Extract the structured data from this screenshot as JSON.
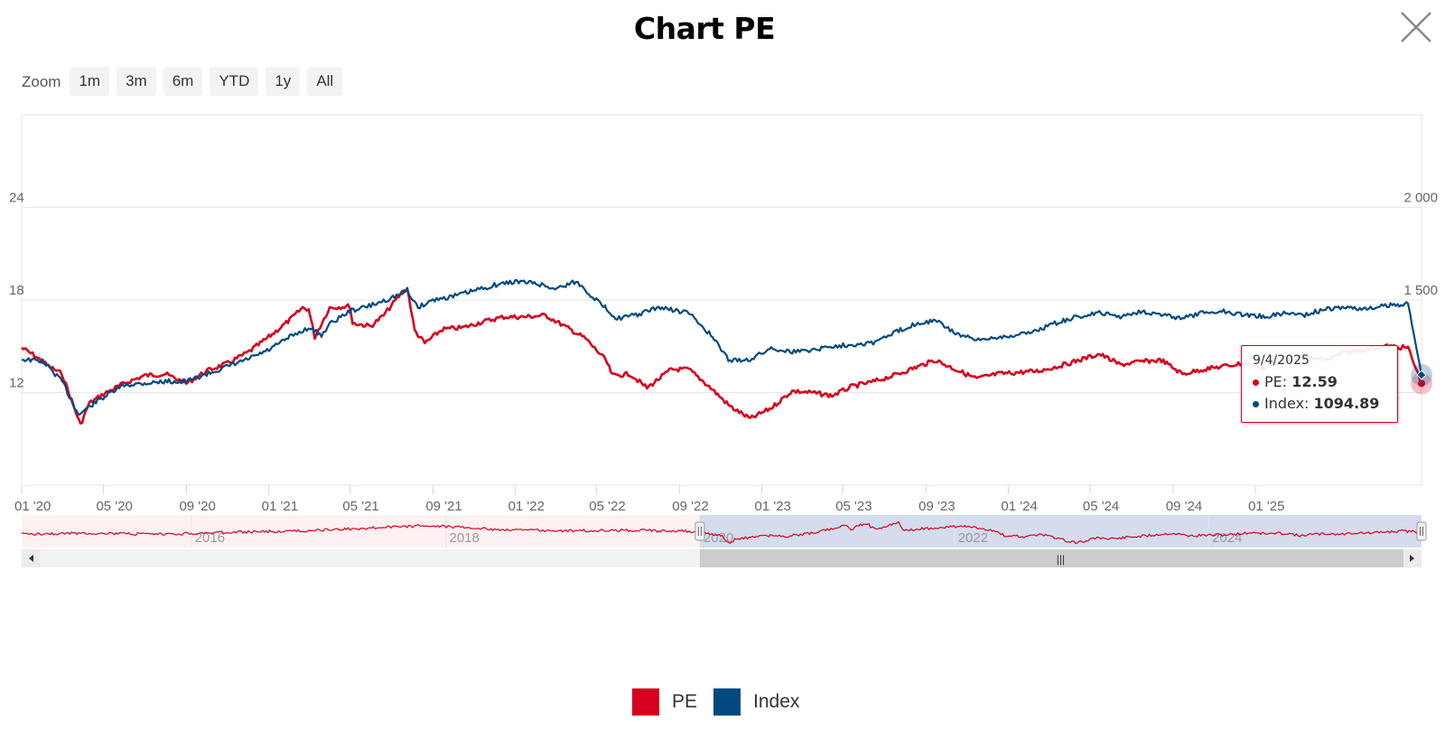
{
  "title": "Chart PE",
  "close_icon": "close-icon",
  "zoom": {
    "label": "Zoom",
    "buttons": [
      "1m",
      "3m",
      "6m",
      "YTD",
      "1y",
      "All"
    ]
  },
  "colors": {
    "pe": "#d7001e",
    "index": "#004a80"
  },
  "chart_data": {
    "type": "line",
    "title": "Chart PE",
    "x_range": [
      "2020-01-01",
      "2025-09-04"
    ],
    "x_ticks": [
      "01 '20",
      "05 '20",
      "09 '20",
      "01 '21",
      "05 '21",
      "09 '21",
      "01 '22",
      "05 '22",
      "09 '22",
      "01 '23",
      "05 '23",
      "09 '23",
      "01 '24",
      "05 '24",
      "09 '24",
      "01 '25"
    ],
    "y_left": {
      "ticks": [
        12,
        18,
        24
      ],
      "range": [
        6,
        30
      ]
    },
    "y_right": {
      "ticks": [
        "1 500",
        "2 000"
      ],
      "range": [
        500,
        2500
      ]
    },
    "grid": true,
    "legend_position": "bottom-center",
    "series": [
      {
        "name": "PE",
        "axis": "left",
        "points": [
          [
            "2020-01-01",
            14.9
          ],
          [
            "2020-01-20",
            14.4
          ],
          [
            "2020-02-10",
            13.7
          ],
          [
            "2020-03-01",
            13.2
          ],
          [
            "2020-03-15",
            11.5
          ],
          [
            "2020-03-28",
            9.9
          ],
          [
            "2020-04-10",
            11.3
          ],
          [
            "2020-05-01",
            11.9
          ],
          [
            "2020-06-01",
            12.6
          ],
          [
            "2020-07-01",
            13.1
          ],
          [
            "2020-08-01",
            13.2
          ],
          [
            "2020-09-01",
            12.6
          ],
          [
            "2020-10-01",
            13.4
          ],
          [
            "2020-11-01",
            13.9
          ],
          [
            "2020-12-01",
            14.6
          ],
          [
            "2021-01-01",
            15.6
          ],
          [
            "2021-02-01",
            16.7
          ],
          [
            "2021-02-20",
            17.5
          ],
          [
            "2021-03-01",
            17.4
          ],
          [
            "2021-03-10",
            15.6
          ],
          [
            "2021-04-01",
            17.5
          ],
          [
            "2021-05-01",
            17.6
          ],
          [
            "2021-05-05",
            16.5
          ],
          [
            "2021-06-01",
            16.3
          ],
          [
            "2021-06-20",
            17.0
          ],
          [
            "2021-07-10",
            18.1
          ],
          [
            "2021-07-25",
            18.8
          ],
          [
            "2021-08-05",
            16.0
          ],
          [
            "2021-08-20",
            15.2
          ],
          [
            "2021-09-15",
            16.1
          ],
          [
            "2021-10-15",
            16.2
          ],
          [
            "2021-11-15",
            16.6
          ],
          [
            "2021-12-15",
            16.9
          ],
          [
            "2022-01-15",
            16.9
          ],
          [
            "2022-02-15",
            17.0
          ],
          [
            "2022-03-15",
            16.3
          ],
          [
            "2022-04-15",
            15.5
          ],
          [
            "2022-05-15",
            14.1
          ],
          [
            "2022-05-25",
            13.1
          ],
          [
            "2022-06-20",
            13.2
          ],
          [
            "2022-07-15",
            12.3
          ],
          [
            "2022-08-20",
            13.5
          ],
          [
            "2022-09-15",
            13.5
          ],
          [
            "2022-10-15",
            12.4
          ],
          [
            "2022-11-15",
            11.1
          ],
          [
            "2022-12-15",
            10.3
          ],
          [
            "2023-01-15",
            11.0
          ],
          [
            "2023-02-15",
            12.1
          ],
          [
            "2023-03-15",
            12.0
          ],
          [
            "2023-04-15",
            11.8
          ],
          [
            "2023-05-15",
            12.4
          ],
          [
            "2023-06-15",
            12.7
          ],
          [
            "2023-07-15",
            13.1
          ],
          [
            "2023-08-15",
            13.6
          ],
          [
            "2023-09-15",
            14.1
          ],
          [
            "2023-10-15",
            13.5
          ],
          [
            "2023-11-15",
            12.9
          ],
          [
            "2023-12-15",
            13.2
          ],
          [
            "2024-01-15",
            13.3
          ],
          [
            "2024-02-15",
            13.4
          ],
          [
            "2024-03-15",
            13.7
          ],
          [
            "2024-04-15",
            14.1
          ],
          [
            "2024-05-15",
            14.5
          ],
          [
            "2024-06-15",
            13.8
          ],
          [
            "2024-07-15",
            14.0
          ],
          [
            "2024-08-15",
            14.1
          ],
          [
            "2024-09-15",
            13.2
          ],
          [
            "2024-10-15",
            13.5
          ],
          [
            "2024-11-15",
            13.7
          ],
          [
            "2024-12-15",
            13.9
          ],
          [
            "2025-01-15",
            13.6
          ],
          [
            "2025-02-15",
            14.2
          ],
          [
            "2025-03-15",
            14.3
          ],
          [
            "2025-04-15",
            14.1
          ],
          [
            "2025-05-15",
            14.6
          ],
          [
            "2025-06-15",
            14.8
          ],
          [
            "2025-07-15",
            15.0
          ],
          [
            "2025-08-15",
            14.9
          ],
          [
            "2025-09-04",
            12.59
          ]
        ]
      },
      {
        "name": "Index",
        "axis": "right",
        "points": [
          [
            "2020-01-01",
            1180
          ],
          [
            "2020-02-01",
            1170
          ],
          [
            "2020-03-01",
            1060
          ],
          [
            "2020-03-25",
            880
          ],
          [
            "2020-04-20",
            950
          ],
          [
            "2020-06-01",
            1040
          ],
          [
            "2020-07-01",
            1050
          ],
          [
            "2020-08-01",
            1060
          ],
          [
            "2020-09-01",
            1060
          ],
          [
            "2020-10-01",
            1100
          ],
          [
            "2020-11-01",
            1140
          ],
          [
            "2020-12-01",
            1180
          ],
          [
            "2021-01-01",
            1230
          ],
          [
            "2021-02-01",
            1300
          ],
          [
            "2021-03-01",
            1350
          ],
          [
            "2021-03-20",
            1310
          ],
          [
            "2021-04-01",
            1370
          ],
          [
            "2021-05-01",
            1440
          ],
          [
            "2021-06-01",
            1470
          ],
          [
            "2021-07-01",
            1510
          ],
          [
            "2021-07-25",
            1550
          ],
          [
            "2021-08-10",
            1460
          ],
          [
            "2021-09-01",
            1500
          ],
          [
            "2021-10-01",
            1520
          ],
          [
            "2021-11-01",
            1550
          ],
          [
            "2021-12-01",
            1580
          ],
          [
            "2022-01-01",
            1600
          ],
          [
            "2022-02-01",
            1590
          ],
          [
            "2022-03-01",
            1560
          ],
          [
            "2022-04-01",
            1600
          ],
          [
            "2022-05-01",
            1500
          ],
          [
            "2022-06-01",
            1400
          ],
          [
            "2022-07-01",
            1420
          ],
          [
            "2022-08-01",
            1460
          ],
          [
            "2022-09-15",
            1430
          ],
          [
            "2022-10-15",
            1320
          ],
          [
            "2022-11-15",
            1170
          ],
          [
            "2022-12-15",
            1180
          ],
          [
            "2023-01-15",
            1240
          ],
          [
            "2023-02-15",
            1220
          ],
          [
            "2023-03-15",
            1230
          ],
          [
            "2023-04-15",
            1250
          ],
          [
            "2023-05-15",
            1260
          ],
          [
            "2023-06-15",
            1270
          ],
          [
            "2023-07-15",
            1320
          ],
          [
            "2023-08-15",
            1370
          ],
          [
            "2023-09-15",
            1390
          ],
          [
            "2023-10-15",
            1320
          ],
          [
            "2023-11-15",
            1280
          ],
          [
            "2023-12-15",
            1300
          ],
          [
            "2024-01-15",
            1310
          ],
          [
            "2024-02-15",
            1340
          ],
          [
            "2024-03-15",
            1380
          ],
          [
            "2024-04-15",
            1410
          ],
          [
            "2024-05-15",
            1430
          ],
          [
            "2024-06-15",
            1410
          ],
          [
            "2024-07-15",
            1440
          ],
          [
            "2024-08-15",
            1420
          ],
          [
            "2024-09-15",
            1400
          ],
          [
            "2024-10-15",
            1430
          ],
          [
            "2024-11-15",
            1440
          ],
          [
            "2024-12-15",
            1420
          ],
          [
            "2025-01-15",
            1410
          ],
          [
            "2025-02-15",
            1430
          ],
          [
            "2025-03-15",
            1420
          ],
          [
            "2025-04-15",
            1450
          ],
          [
            "2025-05-15",
            1460
          ],
          [
            "2025-06-15",
            1450
          ],
          [
            "2025-07-15",
            1470
          ],
          [
            "2025-08-15",
            1480
          ],
          [
            "2025-09-04",
            1094.89
          ]
        ]
      }
    ],
    "navigator": {
      "year_labels": [
        "2016",
        "2018",
        "2020",
        "2022",
        "2024"
      ],
      "range": [
        "2014-09-01",
        "2025-09-04"
      ],
      "selected_range": [
        "2020-01-01",
        "2025-09-04"
      ],
      "handle_glyph": "|||"
    },
    "tooltip": {
      "date": "9/4/2025",
      "pe_label": "PE:",
      "pe_value": "12.59",
      "index_label": "Index:",
      "index_value": "1094.89"
    }
  },
  "legend": [
    {
      "name": "PE",
      "color": "#d7001e"
    },
    {
      "name": "Index",
      "color": "#004a80"
    }
  ]
}
